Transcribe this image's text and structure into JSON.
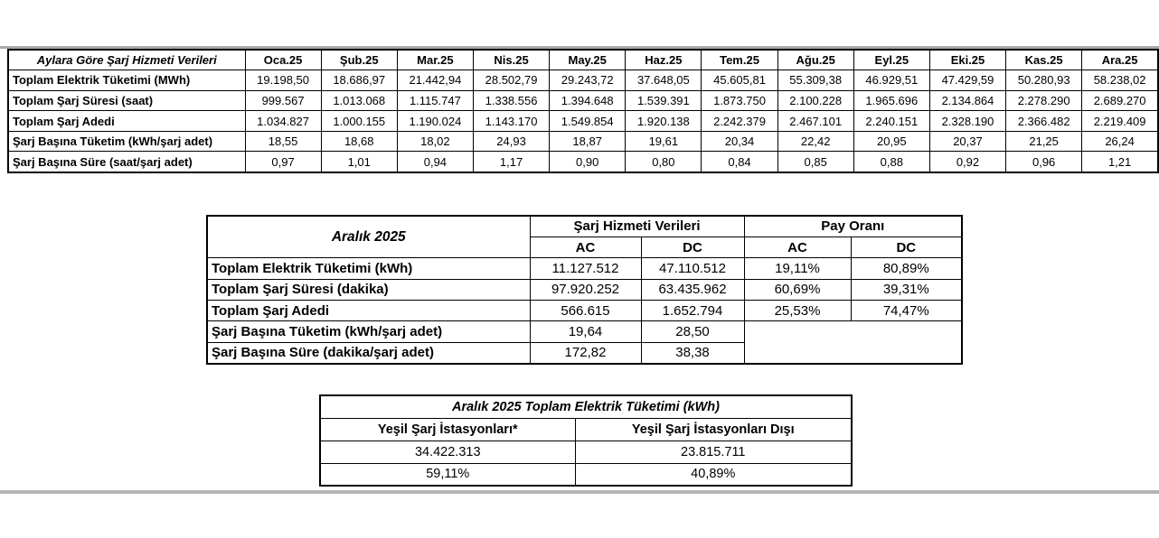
{
  "colors": {
    "background": "#ffffff",
    "border": "#000000",
    "page_edge_top": "#a8a8a8",
    "page_edge_bottom": "#b5b5b5",
    "text": "#000000"
  },
  "monthly_table": {
    "title": "Aylara Göre Şarj Hizmeti Verileri",
    "columns": [
      "Oca.25",
      "Şub.25",
      "Mar.25",
      "Nis.25",
      "May.25",
      "Haz.25",
      "Tem.25",
      "Ağu.25",
      "Eyl.25",
      "Eki.25",
      "Kas.25",
      "Ara.25"
    ],
    "rows": [
      {
        "label": "Toplam Elektrik Tüketimi (MWh)",
        "values": [
          "19.198,50",
          "18.686,97",
          "21.442,94",
          "28.502,79",
          "29.243,72",
          "37.648,05",
          "45.605,81",
          "55.309,38",
          "46.929,51",
          "47.429,59",
          "50.280,93",
          "58.238,02"
        ]
      },
      {
        "label": "Toplam Şarj Süresi (saat)",
        "values": [
          "999.567",
          "1.013.068",
          "1.115.747",
          "1.338.556",
          "1.394.648",
          "1.539.391",
          "1.873.750",
          "2.100.228",
          "1.965.696",
          "2.134.864",
          "2.278.290",
          "2.689.270"
        ]
      },
      {
        "label": "Toplam Şarj Adedi",
        "values": [
          "1.034.827",
          "1.000.155",
          "1.190.024",
          "1.143.170",
          "1.549.854",
          "1.920.138",
          "2.242.379",
          "2.467.101",
          "2.240.151",
          "2.328.190",
          "2.366.482",
          "2.219.409"
        ]
      },
      {
        "label": "Şarj Başına Tüketim (kWh/şarj adet)",
        "values": [
          "18,55",
          "18,68",
          "18,02",
          "24,93",
          "18,87",
          "19,61",
          "20,34",
          "22,42",
          "20,95",
          "20,37",
          "21,25",
          "26,24"
        ]
      },
      {
        "label": "Şarj Başına Süre (saat/şarj adet)",
        "values": [
          "0,97",
          "1,01",
          "0,94",
          "1,17",
          "0,90",
          "0,80",
          "0,84",
          "0,85",
          "0,88",
          "0,92",
          "0,96",
          "1,21"
        ]
      }
    ]
  },
  "december_table": {
    "title": "Aralık 2025",
    "group_headers": {
      "charge": "Şarj Hizmeti Verileri",
      "share": "Pay Oranı"
    },
    "sub_headers": {
      "charge_ac": "AC",
      "charge_dc": "DC",
      "share_ac": "AC",
      "share_dc": "DC"
    },
    "rows": [
      {
        "label": "Toplam Elektrik Tüketimi (kWh)",
        "ac": "11.127.512",
        "dc": "47.110.512",
        "ac_share": "19,11%",
        "dc_share": "80,89%"
      },
      {
        "label": "Toplam Şarj Süresi (dakika)",
        "ac": "97.920.252",
        "dc": "63.435.962",
        "ac_share": "60,69%",
        "dc_share": "39,31%"
      },
      {
        "label": "Toplam Şarj Adedi",
        "ac": "566.615",
        "dc": "1.652.794",
        "ac_share": "25,53%",
        "dc_share": "74,47%"
      },
      {
        "label": "Şarj Başına Tüketim (kWh/şarj adet)",
        "ac": "19,64",
        "dc": "28,50"
      },
      {
        "label": "Şarj Başına Süre (dakika/şarj adet)",
        "ac": "172,82",
        "dc": "38,38"
      }
    ]
  },
  "green_table": {
    "title": "Aralık 2025 Toplam Elektrik Tüketimi (kWh)",
    "columns": [
      "Yeşil Şarj İstasyonları*",
      "Yeşil Şarj İstasyonları Dışı"
    ],
    "consumption": [
      "34.422.313",
      "23.815.711"
    ],
    "share": [
      "59,11%",
      "40,89%"
    ]
  }
}
